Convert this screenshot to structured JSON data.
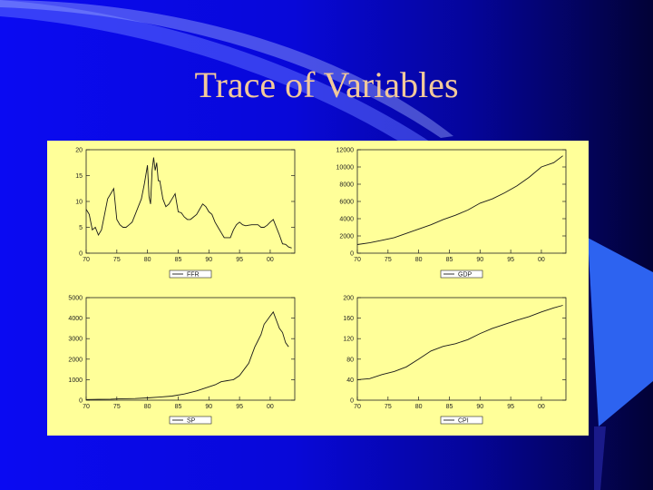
{
  "slide": {
    "title": "Trace of Variables",
    "colors": {
      "background": "#0a0af2",
      "title": "#f2c99a",
      "panel": "#ffff99",
      "line": "#1a1a1a"
    }
  },
  "chart_data": [
    {
      "type": "line",
      "legend": "FFR",
      "x_ticks": [
        "70",
        "75",
        "80",
        "85",
        "90",
        "95",
        "00"
      ],
      "y_ticks": [
        "0",
        "5",
        "10",
        "15",
        "20"
      ],
      "xlim": [
        1970,
        2004
      ],
      "ylim": [
        0,
        20
      ],
      "x": [
        1970,
        1970.5,
        1971,
        1971.5,
        1972,
        1972.5,
        1973,
        1973.5,
        1974,
        1974.5,
        1975,
        1975.5,
        1976,
        1976.5,
        1977,
        1977.5,
        1978,
        1978.5,
        1979,
        1979.5,
        1980,
        1980.25,
        1980.5,
        1980.75,
        1981,
        1981.25,
        1981.5,
        1981.75,
        1982,
        1982.5,
        1983,
        1983.5,
        1984,
        1984.5,
        1985,
        1985.5,
        1986,
        1986.5,
        1987,
        1987.5,
        1988,
        1988.5,
        1989,
        1989.5,
        1990,
        1990.5,
        1991,
        1991.5,
        1992,
        1992.5,
        1993,
        1993.5,
        1994,
        1994.5,
        1995,
        1995.5,
        1996,
        1996.5,
        1997,
        1997.5,
        1998,
        1998.5,
        1999,
        1999.5,
        2000,
        2000.5,
        2001,
        2001.5,
        2002,
        2002.5,
        2003,
        2003.5
      ],
      "y": [
        8.5,
        7.5,
        4.5,
        5.0,
        3.5,
        4.5,
        7.5,
        10.5,
        11.5,
        12.5,
        6.5,
        5.5,
        5.0,
        5.0,
        5.5,
        6.0,
        7.5,
        9.0,
        10.5,
        13.5,
        17.0,
        11.0,
        9.5,
        16.0,
        18.5,
        16.0,
        17.5,
        14.0,
        14.0,
        10.5,
        9.0,
        9.5,
        10.5,
        11.5,
        8.0,
        7.8,
        7.0,
        6.5,
        6.5,
        7.0,
        7.5,
        8.5,
        9.5,
        9.0,
        8.0,
        7.5,
        6.0,
        5.0,
        4.0,
        3.0,
        3.0,
        3.0,
        4.5,
        5.5,
        6.0,
        5.5,
        5.3,
        5.4,
        5.5,
        5.5,
        5.5,
        5.0,
        5.0,
        5.4,
        6.0,
        6.5,
        5.0,
        3.5,
        1.8,
        1.7,
        1.2,
        1.0
      ]
    },
    {
      "type": "line",
      "legend": "GDP",
      "x_ticks": [
        "70",
        "75",
        "80",
        "85",
        "90",
        "95",
        "00"
      ],
      "y_ticks": [
        "0",
        "2000",
        "4000",
        "6000",
        "8000",
        "10000",
        "12000"
      ],
      "xlim": [
        1970,
        2004
      ],
      "ylim": [
        0,
        12000
      ],
      "x": [
        1970,
        1972,
        1974,
        1976,
        1978,
        1980,
        1982,
        1984,
        1986,
        1988,
        1990,
        1992,
        1994,
        1996,
        1998,
        2000,
        2002,
        2003.5
      ],
      "y": [
        1000,
        1200,
        1500,
        1800,
        2300,
        2800,
        3300,
        3900,
        4400,
        5000,
        5800,
        6300,
        7000,
        7800,
        8800,
        10000,
        10500,
        11300
      ]
    },
    {
      "type": "line",
      "legend": "SP",
      "x_ticks": [
        "70",
        "75",
        "80",
        "85",
        "90",
        "95",
        "00"
      ],
      "y_ticks": [
        "0",
        "1000",
        "2000",
        "3000",
        "4000",
        "5000"
      ],
      "xlim": [
        1970,
        2004
      ],
      "ylim": [
        0,
        5000
      ],
      "x": [
        1970,
        1972,
        1974,
        1976,
        1978,
        1980,
        1982,
        1984,
        1986,
        1988,
        1989,
        1990,
        1991,
        1992,
        1993,
        1994,
        1995,
        1996,
        1996.5,
        1997,
        1997.5,
        1998,
        1998.5,
        1999,
        1999.5,
        2000,
        2000.5,
        2001,
        2001.5,
        2002,
        2002.5,
        2003
      ],
      "y": [
        30,
        40,
        50,
        70,
        80,
        110,
        150,
        200,
        300,
        450,
        550,
        650,
        750,
        900,
        950,
        1000,
        1200,
        1600,
        1800,
        2200,
        2600,
        2900,
        3200,
        3700,
        3900,
        4100,
        4300,
        3900,
        3500,
        3300,
        2800,
        2600
      ]
    },
    {
      "type": "line",
      "legend": "CPI",
      "x_ticks": [
        "70",
        "75",
        "80",
        "85",
        "90",
        "95",
        "00"
      ],
      "y_ticks": [
        "0",
        "40",
        "80",
        "120",
        "160",
        "200"
      ],
      "xlim": [
        1970,
        2004
      ],
      "ylim": [
        0,
        200
      ],
      "x": [
        1970,
        1972,
        1974,
        1976,
        1978,
        1980,
        1982,
        1984,
        1986,
        1988,
        1990,
        1992,
        1994,
        1996,
        1998,
        2000,
        2002,
        2003.5
      ],
      "y": [
        40,
        42,
        50,
        56,
        65,
        80,
        96,
        105,
        110,
        118,
        130,
        140,
        148,
        156,
        163,
        172,
        180,
        185
      ]
    }
  ]
}
